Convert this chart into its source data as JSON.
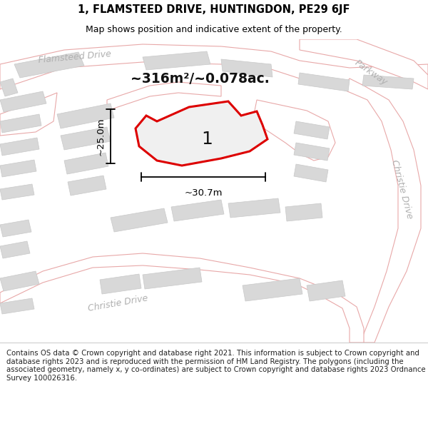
{
  "title_line1": "1, FLAMSTEED DRIVE, HUNTINGDON, PE29 6JF",
  "title_line2": "Map shows position and indicative extent of the property.",
  "area_label": "~316m²/~0.078ac.",
  "plot_number": "1",
  "dim_vertical": "~25.0m",
  "dim_horizontal": "~30.7m",
  "footer_text": "Contains OS data © Crown copyright and database right 2021. This information is subject to Crown copyright and database rights 2023 and is reproduced with the permission of HM Land Registry. The polygons (including the associated geometry, namely x, y co-ordinates) are subject to Crown copyright and database rights 2023 Ordnance Survey 100026316.",
  "map_bg": "#f2f0ed",
  "road_fill": "#ffffff",
  "building_fill": "#d8d8d8",
  "building_edge": "#c8c8c8",
  "road_stroke": "#e8a8a8",
  "plot_fill": "#f0f0f0",
  "plot_stroke": "#dd0000",
  "road_label_color": "#b0b0b0",
  "title_color": "#000000",
  "footer_color": "#222222",
  "page_bg": "#ffffff"
}
